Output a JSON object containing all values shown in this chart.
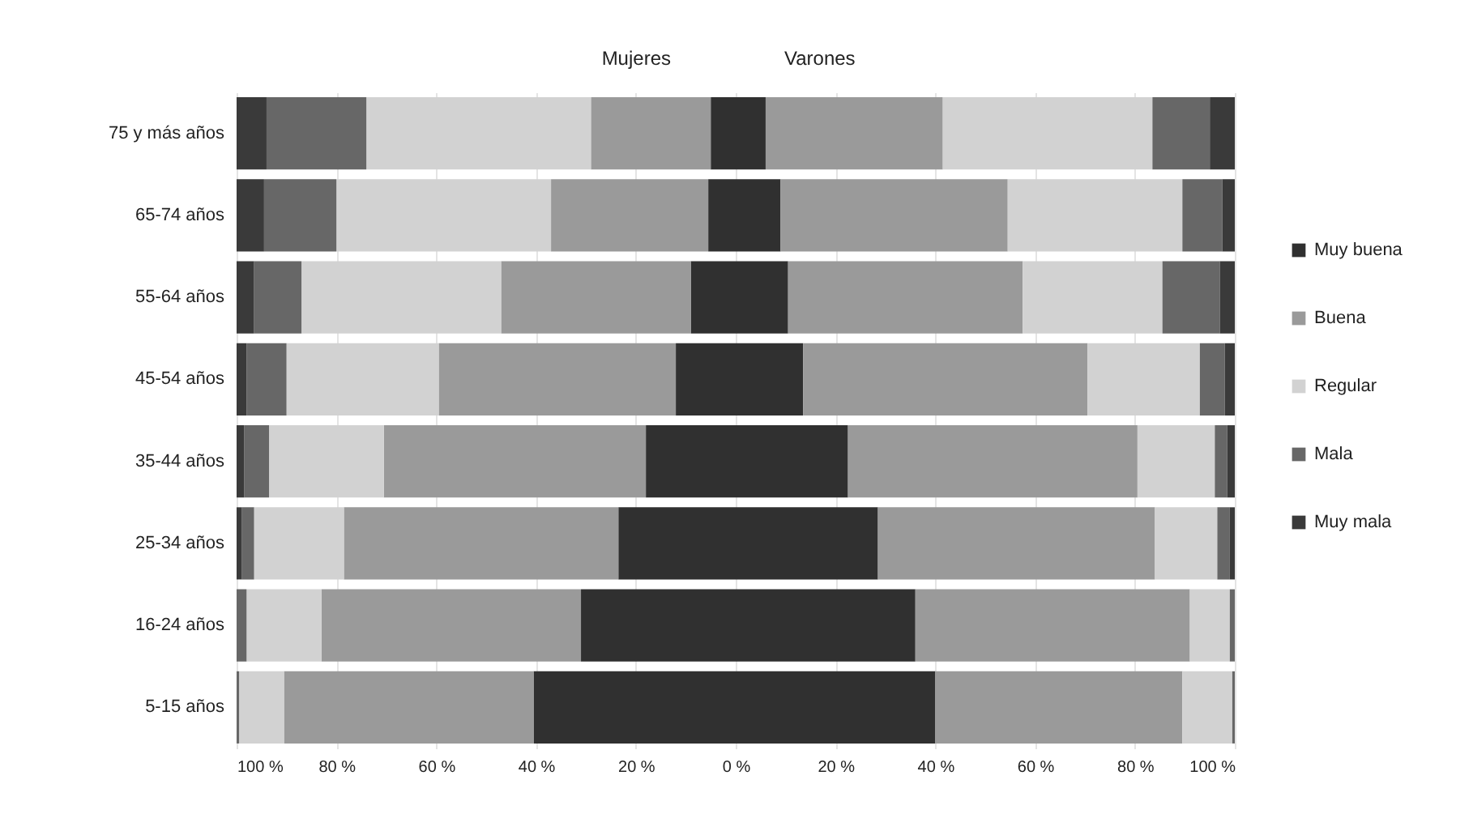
{
  "chart_data": {
    "type": "bar",
    "orientation": "horizontal",
    "stacked": true,
    "categories": [
      "75 y más años",
      "65-74 años",
      "55-64 años",
      "45-54 años",
      "35-44 años",
      "25-34 años",
      "16-24 años",
      "5-15 años"
    ],
    "series": [
      {
        "color": "#303030",
        "values": [
          -5,
          -5.5,
          -9,
          -12,
          -18,
          -23.5,
          -31,
          -40.5
        ]
      },
      {
        "color": "#9a9a9a",
        "values": [
          -24,
          -31.5,
          -38,
          -47.5,
          -52.5,
          -55,
          -52,
          -50
        ]
      },
      {
        "color": "#d2d2d2",
        "values": [
          -45,
          -43,
          -40,
          -30.5,
          -23,
          -18,
          -15,
          -9
        ]
      },
      {
        "color": "#676767",
        "values": [
          -20,
          -14.5,
          -9.5,
          -8,
          -5,
          -2.5,
          -2,
          -0.5
        ]
      },
      {
        "color": "#3a3a3a",
        "values": [
          -6,
          -5.5,
          -3.5,
          -2,
          -1.5,
          -1,
          null,
          null
        ]
      },
      {
        "name": "Muy buena",
        "color": "#303030",
        "values": [
          6,
          9,
          10.5,
          13.5,
          22.5,
          28.5,
          36,
          40
        ]
      },
      {
        "name": "Buena",
        "color": "#9a9a9a",
        "values": [
          35.5,
          45.5,
          47,
          57,
          58,
          55.5,
          55,
          49.5
        ]
      },
      {
        "name": "Regular",
        "color": "#d2d2d2",
        "values": [
          42,
          35,
          28,
          22.5,
          15.5,
          12.5,
          8,
          10
        ]
      },
      {
        "name": "Mala",
        "color": "#676767",
        "values": [
          11.5,
          8,
          11.5,
          5,
          2.5,
          2.5,
          1,
          0.5
        ]
      },
      {
        "name": "Muy mala",
        "color": "#3a3a3a",
        "values": [
          5,
          2.5,
          3,
          2,
          1.5,
          1,
          null,
          null
        ]
      }
    ],
    "xlim": [
      -100,
      100
    ],
    "xticks": [
      {
        "value": -100,
        "label": "100 %"
      },
      {
        "value": -80,
        "label": "80 %"
      },
      {
        "value": -60,
        "label": "60 %"
      },
      {
        "value": -40,
        "label": "40 %"
      },
      {
        "value": -20,
        "label": "20 %"
      },
      {
        "value": 0,
        "label": "0 %"
      },
      {
        "value": 20,
        "label": "20 %"
      },
      {
        "value": 40,
        "label": "40 %"
      },
      {
        "value": 60,
        "label": "60 %"
      },
      {
        "value": 80,
        "label": "80 %"
      },
      {
        "value": 100,
        "label": "100 %"
      }
    ],
    "grid": "x",
    "legend": "right",
    "annotations": [
      "Mujeres",
      "Varones"
    ]
  }
}
